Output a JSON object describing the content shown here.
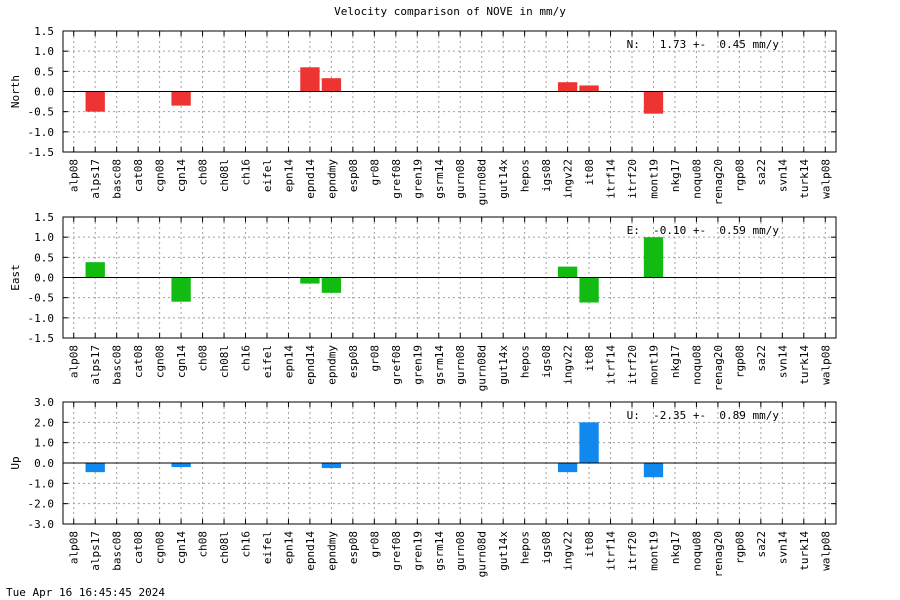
{
  "title": "Velocity comparison of NOVE in mm/y",
  "timestamp": "Tue Apr 16 16:45:45 2024",
  "chart_data": [
    {
      "type": "bar",
      "ylabel": "North",
      "ylim": [
        -1.5,
        1.5
      ],
      "yticks": [
        "1.5",
        "1.0",
        "0.5",
        "0.0",
        "-0.5",
        "-1.0",
        "-1.5"
      ],
      "annotation": "N:   1.73 +-  0.45 mm/y",
      "color": "#ee3333",
      "grid": true,
      "categories": [
        "alp08",
        "alps17",
        "basc08",
        "cat08",
        "cgn08",
        "cgn14",
        "ch08",
        "ch08l",
        "ch16",
        "eifel",
        "epn14",
        "epnd14",
        "epndmy",
        "esp08",
        "gr08",
        "gref08",
        "gren19",
        "gsrm14",
        "gurn08",
        "gurn08d",
        "gut14x",
        "hepos",
        "igs08",
        "ingv22",
        "it08",
        "itrf14",
        "itrf20",
        "mont19",
        "nkg17",
        "noqu08",
        "renag20",
        "rgp08",
        "sa22",
        "svn14",
        "turk14",
        "walp08"
      ],
      "values": [
        0,
        -0.5,
        0,
        0,
        0,
        -0.35,
        0,
        0,
        0,
        0,
        0,
        0.6,
        0.33,
        0,
        0,
        0,
        0,
        0,
        0,
        0,
        0,
        0,
        0,
        0.23,
        0.15,
        0,
        0,
        -0.55,
        0,
        0,
        0,
        0,
        0,
        0,
        0,
        0
      ]
    },
    {
      "type": "bar",
      "ylabel": "East",
      "ylim": [
        -1.5,
        1.5
      ],
      "yticks": [
        "1.5",
        "1.0",
        "0.5",
        "0.0",
        "-0.5",
        "-1.0",
        "-1.5"
      ],
      "annotation": "E:  -0.10 +-  0.59 mm/y",
      "color": "#11bb11",
      "grid": true,
      "categories": [
        "alp08",
        "alps17",
        "basc08",
        "cat08",
        "cgn08",
        "cgn14",
        "ch08",
        "ch08l",
        "ch16",
        "eifel",
        "epn14",
        "epnd14",
        "epndmy",
        "esp08",
        "gr08",
        "gref08",
        "gren19",
        "gsrm14",
        "gurn08",
        "gurn08d",
        "gut14x",
        "hepos",
        "igs08",
        "ingv22",
        "it08",
        "itrf14",
        "itrf20",
        "mont19",
        "nkg17",
        "noqu08",
        "renag20",
        "rgp08",
        "sa22",
        "svn14",
        "turk14",
        "walp08"
      ],
      "values": [
        0,
        0.38,
        0,
        0,
        0,
        -0.6,
        0,
        0,
        0,
        0,
        0,
        -0.15,
        -0.38,
        0,
        0,
        0,
        0,
        0,
        0,
        0,
        0,
        0,
        0,
        0.27,
        -0.62,
        0,
        0,
        1.0,
        0,
        0,
        0,
        0,
        0,
        0,
        0,
        0
      ]
    },
    {
      "type": "bar",
      "ylabel": "Up",
      "ylim": [
        -3.0,
        3.0
      ],
      "yticks": [
        "3.0",
        "2.0",
        "1.0",
        "0.0",
        "-1.0",
        "-2.0",
        "-3.0"
      ],
      "annotation": "U:  -2.35 +-  0.89 mm/y",
      "color": "#1188ee",
      "grid": true,
      "categories": [
        "alp08",
        "alps17",
        "basc08",
        "cat08",
        "cgn08",
        "cgn14",
        "ch08",
        "ch08l",
        "ch16",
        "eifel",
        "epn14",
        "epnd14",
        "epndmy",
        "esp08",
        "gr08",
        "gref08",
        "gren19",
        "gsrm14",
        "gurn08",
        "gurn08d",
        "gut14x",
        "hepos",
        "igs08",
        "ingv22",
        "it08",
        "itrf14",
        "itrf20",
        "mont19",
        "nkg17",
        "noqu08",
        "renag20",
        "rgp08",
        "sa22",
        "svn14",
        "turk14",
        "walp08"
      ],
      "values": [
        0,
        -0.45,
        0,
        0,
        0,
        -0.2,
        0,
        0,
        0,
        0,
        0,
        0,
        -0.25,
        0,
        0,
        0,
        0,
        0,
        0,
        0,
        0,
        0,
        0,
        -0.45,
        2.0,
        0,
        0,
        -0.7,
        0,
        0,
        0,
        0,
        0,
        0,
        0,
        0
      ]
    }
  ]
}
